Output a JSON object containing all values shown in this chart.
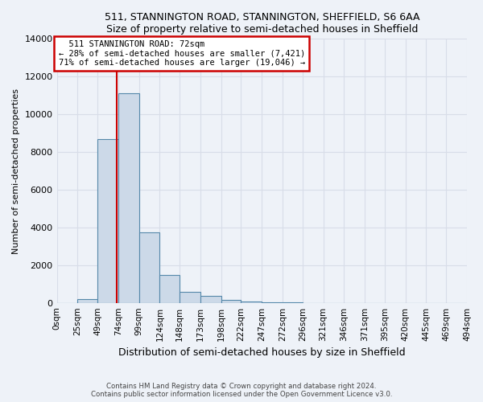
{
  "title1": "511, STANNINGTON ROAD, STANNINGTON, SHEFFIELD, S6 6AA",
  "title2": "Size of property relative to semi-detached houses in Sheffield",
  "xlabel": "Distribution of semi-detached houses by size in Sheffield",
  "ylabel": "Number of semi-detached properties",
  "footnote": "Contains HM Land Registry data © Crown copyright and database right 2024.\nContains public sector information licensed under the Open Government Licence v3.0.",
  "property_size": 72,
  "property_label": "511 STANNINGTON ROAD: 72sqm",
  "pct_smaller": 28,
  "pct_larger": 71,
  "count_smaller": 7421,
  "count_larger": 19046,
  "bin_labels": [
    "0sqm",
    "25sqm",
    "49sqm",
    "74sqm",
    "99sqm",
    "124sqm",
    "148sqm",
    "173sqm",
    "198sqm",
    "222sqm",
    "247sqm",
    "272sqm",
    "296sqm",
    "321sqm",
    "346sqm",
    "371sqm",
    "395sqm",
    "420sqm",
    "445sqm",
    "469sqm",
    "494sqm"
  ],
  "bin_edges": [
    0,
    25,
    49,
    74,
    99,
    124,
    148,
    173,
    198,
    222,
    247,
    272,
    296,
    321,
    346,
    371,
    395,
    420,
    445,
    469,
    494
  ],
  "bar_values": [
    0,
    200,
    8700,
    11100,
    3750,
    1500,
    600,
    350,
    150,
    80,
    40,
    10,
    0,
    0,
    0,
    0,
    0,
    0,
    0,
    0
  ],
  "bar_color": "#ccd9e8",
  "bar_edge_color": "#5588aa",
  "annotation_border_color": "#cc0000",
  "line_color": "#cc0000",
  "background_color": "#eef2f8",
  "grid_color": "#d8dde8",
  "ylim": [
    0,
    14000
  ],
  "yticks": [
    0,
    2000,
    4000,
    6000,
    8000,
    10000,
    12000,
    14000
  ]
}
